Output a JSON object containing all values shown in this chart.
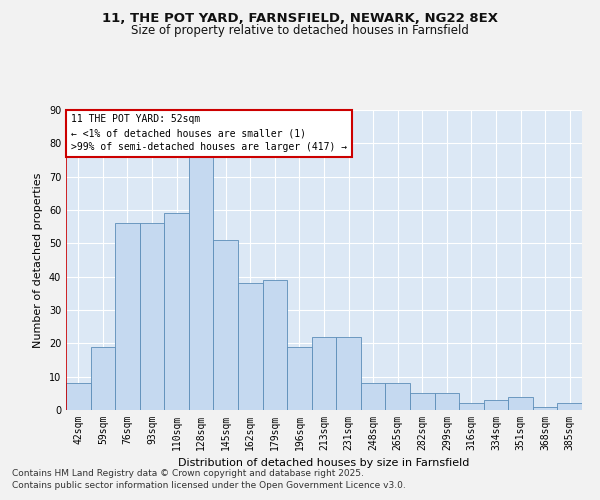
{
  "title_line1": "11, THE POT YARD, FARNSFIELD, NEWARK, NG22 8EX",
  "title_line2": "Size of property relative to detached houses in Farnsfield",
  "xlabel": "Distribution of detached houses by size in Farnsfield",
  "ylabel": "Number of detached properties",
  "categories": [
    "42sqm",
    "59sqm",
    "76sqm",
    "93sqm",
    "110sqm",
    "128sqm",
    "145sqm",
    "162sqm",
    "179sqm",
    "196sqm",
    "213sqm",
    "231sqm",
    "248sqm",
    "265sqm",
    "282sqm",
    "299sqm",
    "316sqm",
    "334sqm",
    "351sqm",
    "368sqm",
    "385sqm"
  ],
  "values": [
    8,
    19,
    56,
    56,
    59,
    76,
    51,
    38,
    39,
    19,
    22,
    22,
    8,
    8,
    5,
    5,
    2,
    3,
    4,
    1,
    2
  ],
  "bar_color": "#c5d9f0",
  "bar_edge_color": "#5b8db8",
  "highlight_line_color": "#cc0000",
  "annotation_box_text": "11 THE POT YARD: 52sqm\n← <1% of detached houses are smaller (1)\n>99% of semi-detached houses are larger (417) →",
  "annotation_box_color": "#cc0000",
  "ylim": [
    0,
    90
  ],
  "yticks": [
    0,
    10,
    20,
    30,
    40,
    50,
    60,
    70,
    80,
    90
  ],
  "footer_line1": "Contains HM Land Registry data © Crown copyright and database right 2025.",
  "footer_line2": "Contains public sector information licensed under the Open Government Licence v3.0.",
  "bg_color": "#dce8f5",
  "plot_bg_color": "#dce8f5",
  "fig_bg_color": "#f2f2f2",
  "grid_color": "#ffffff",
  "title_fontsize": 9.5,
  "subtitle_fontsize": 8.5,
  "axis_label_fontsize": 8,
  "tick_fontsize": 7,
  "annotation_fontsize": 7,
  "footer_fontsize": 6.5
}
